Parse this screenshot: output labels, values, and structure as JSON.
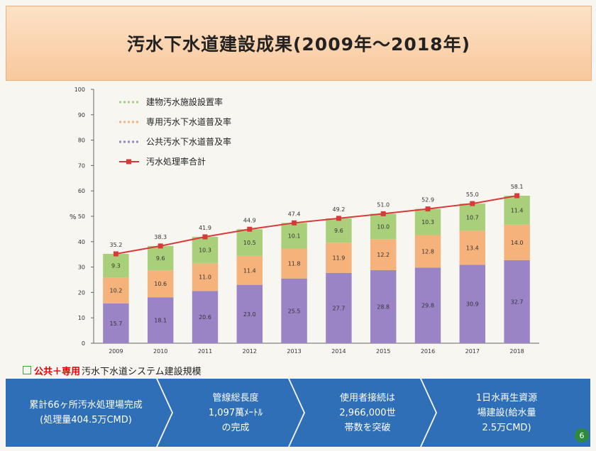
{
  "title": "汚水下水道建設成果(2009年〜2018年)",
  "chart_data": {
    "type": "bar",
    "stacked": true,
    "categories": [
      "2009",
      "2010",
      "2011",
      "2012",
      "2013",
      "2014",
      "2015",
      "2016",
      "2017",
      "2018"
    ],
    "series": [
      {
        "name": "公共汚水下水道普及率",
        "color": "#9a84c6",
        "values": [
          15.7,
          18.1,
          20.6,
          23.0,
          25.5,
          27.7,
          28.8,
          29.8,
          30.9,
          32.7
        ]
      },
      {
        "name": "専用汚水下水道普及率",
        "color": "#f5b27a",
        "values": [
          10.2,
          10.6,
          11.0,
          11.4,
          11.8,
          11.9,
          12.2,
          12.8,
          13.4,
          14.0
        ]
      },
      {
        "name": "建物汚水施設設置率",
        "color": "#a9cf7a",
        "values": [
          9.3,
          9.6,
          10.3,
          10.5,
          10.1,
          9.6,
          10.0,
          10.3,
          10.7,
          11.4
        ]
      }
    ],
    "total": {
      "name": "汚水処理率合計",
      "color": "#d83a3a",
      "values": [
        35.2,
        38.3,
        41.9,
        44.9,
        47.4,
        49.2,
        51.0,
        52.9,
        55.0,
        58.1
      ]
    },
    "legend_order": [
      "建物汚水施設設置率",
      "専用汚水下水道普及率",
      "公共汚水下水道普及率",
      "汚水処理率合計"
    ],
    "ylabel": "%",
    "ylim": [
      0,
      100
    ],
    "yticks": [
      0,
      10,
      20,
      30,
      40,
      50,
      60,
      70,
      80,
      90,
      100
    ],
    "grid": false,
    "legend_position": "top-left"
  },
  "caption": {
    "red_text": "公共＋専用",
    "text": "汚水下水道システム建設規模"
  },
  "arrows": [
    {
      "label": "累計66ヶ所汚水処理場完成\n(処理量404.5万CMD)"
    },
    {
      "label": "管線総長度\n1,097萬ﾒｰﾄﾙ\nの完成"
    },
    {
      "label": "使用者接続は\n2,966,000世\n帯数を突破"
    },
    {
      "label": "1日水再生資源\n場建設(給水量\n2.5万CMD)"
    }
  ],
  "page_number": "6"
}
